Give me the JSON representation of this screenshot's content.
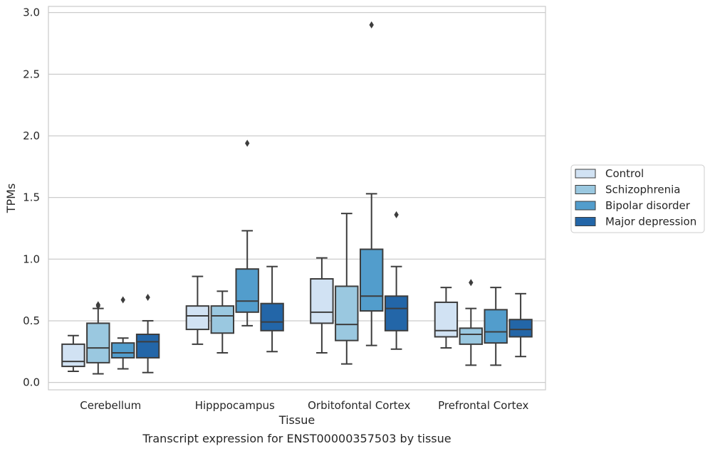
{
  "caption": "Transcript expression for ENST00000357503 by tissue",
  "chart_data": {
    "type": "box",
    "xlabel": "Tissue",
    "ylabel": "TPMs",
    "ylim": [
      -0.06,
      3.05
    ],
    "yticks": [
      0.0,
      0.5,
      1.0,
      1.5,
      2.0,
      2.5,
      3.0
    ],
    "ytick_labels": [
      "0.0",
      "0.5",
      "1.0",
      "1.5",
      "2.0",
      "2.5",
      "3.0"
    ],
    "grid": true,
    "legend_position": "right",
    "categories": [
      "Cerebellum",
      "Hipppocampus",
      "Orbitofontal Cortex",
      "Prefrontal Cortex"
    ],
    "series": [
      {
        "name": "Control",
        "color": "#d1e2f3",
        "boxes": [
          {
            "whislo": 0.09,
            "q1": 0.13,
            "med": 0.17,
            "q3": 0.31,
            "whishi": 0.38,
            "fliers": []
          },
          {
            "whislo": 0.31,
            "q1": 0.43,
            "med": 0.54,
            "q3": 0.62,
            "whishi": 0.86,
            "fliers": []
          },
          {
            "whislo": 0.24,
            "q1": 0.48,
            "med": 0.57,
            "q3": 0.84,
            "whishi": 1.01,
            "fliers": []
          },
          {
            "whislo": 0.28,
            "q1": 0.37,
            "med": 0.42,
            "q3": 0.65,
            "whishi": 0.77,
            "fliers": []
          }
        ]
      },
      {
        "name": "Schizophrenia",
        "color": "#9ac8e0",
        "boxes": [
          {
            "whislo": 0.07,
            "q1": 0.16,
            "med": 0.28,
            "q3": 0.48,
            "whishi": 0.6,
            "fliers": [
              0.62,
              0.63
            ]
          },
          {
            "whislo": 0.24,
            "q1": 0.4,
            "med": 0.54,
            "q3": 0.62,
            "whishi": 0.74,
            "fliers": []
          },
          {
            "whislo": 0.15,
            "q1": 0.34,
            "med": 0.47,
            "q3": 0.78,
            "whishi": 1.37,
            "fliers": []
          },
          {
            "whislo": 0.14,
            "q1": 0.31,
            "med": 0.39,
            "q3": 0.44,
            "whishi": 0.6,
            "fliers": [
              0.81
            ]
          }
        ]
      },
      {
        "name": "Bipolar disorder",
        "color": "#529dcc",
        "boxes": [
          {
            "whislo": 0.11,
            "q1": 0.2,
            "med": 0.24,
            "q3": 0.32,
            "whishi": 0.36,
            "fliers": [
              0.67
            ]
          },
          {
            "whislo": 0.46,
            "q1": 0.57,
            "med": 0.66,
            "q3": 0.92,
            "whishi": 1.23,
            "fliers": [
              1.94
            ]
          },
          {
            "whislo": 0.3,
            "q1": 0.58,
            "med": 0.7,
            "q3": 1.08,
            "whishi": 1.53,
            "fliers": [
              2.9
            ]
          },
          {
            "whislo": 0.14,
            "q1": 0.32,
            "med": 0.41,
            "q3": 0.59,
            "whishi": 0.77,
            "fliers": []
          }
        ]
      },
      {
        "name": "Major depression",
        "color": "#2366a8",
        "boxes": [
          {
            "whislo": 0.08,
            "q1": 0.2,
            "med": 0.33,
            "q3": 0.39,
            "whishi": 0.5,
            "fliers": [
              0.69
            ]
          },
          {
            "whislo": 0.25,
            "q1": 0.42,
            "med": 0.49,
            "q3": 0.64,
            "whishi": 0.94,
            "fliers": []
          },
          {
            "whislo": 0.27,
            "q1": 0.42,
            "med": 0.6,
            "q3": 0.7,
            "whishi": 0.94,
            "fliers": [
              1.36
            ]
          },
          {
            "whislo": 0.21,
            "q1": 0.37,
            "med": 0.43,
            "q3": 0.51,
            "whishi": 0.72,
            "fliers": []
          }
        ]
      }
    ]
  }
}
